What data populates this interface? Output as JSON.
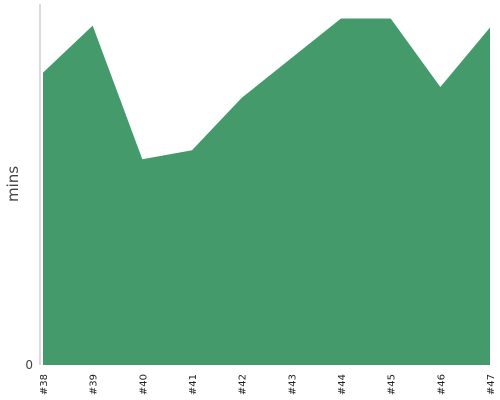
{
  "chart_data": {
    "type": "area",
    "title": "",
    "xlabel": "",
    "ylabel": "mins",
    "categories": [
      "#38",
      "#39",
      "#40",
      "#41",
      "#42",
      "#43",
      "#44",
      "#45",
      "#46",
      "#47"
    ],
    "x": [
      0,
      1,
      2,
      3,
      4,
      4.5,
      5,
      6,
      7,
      8,
      9
    ],
    "values": [
      81,
      94,
      57,
      59.5,
      74,
      79.5,
      85,
      96,
      96,
      77,
      93.5
    ],
    "ylim": [
      0,
      100
    ],
    "y_ticks": [
      0
    ],
    "grid": false,
    "legend": "none",
    "colors": {
      "fill": "#449a6b",
      "axis": "#b5b5b5",
      "text": "#222222",
      "background": "#ffffff"
    }
  }
}
